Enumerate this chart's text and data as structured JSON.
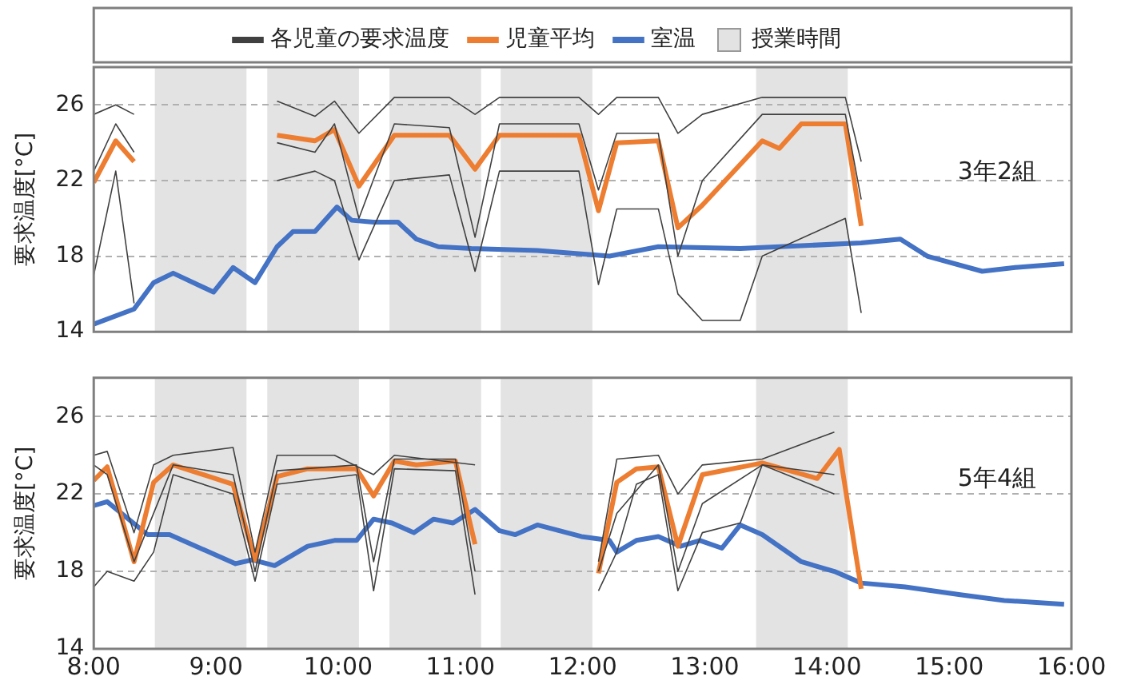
{
  "chart_data": [
    {
      "type": "line",
      "ylabel": "要求温度[°C]",
      "annotations": [
        "3年2組"
      ],
      "legend": "top",
      "tick_labels": "y",
      "grid": "y",
      "xlim": [
        8,
        16
      ],
      "ylim": [
        14,
        28
      ],
      "yticks": [
        14,
        18,
        22,
        26
      ],
      "bands": [
        {
          "axis": "x",
          "from": 8.5,
          "to": 9.25,
          "label": "授業時間",
          "color": "#e3e3e3"
        },
        {
          "axis": "x",
          "from": 9.42,
          "to": 10.17,
          "color": "#e3e3e3"
        },
        {
          "axis": "x",
          "from": 10.42,
          "to": 11.17,
          "color": "#e3e3e3"
        },
        {
          "axis": "x",
          "from": 11.33,
          "to": 12.08,
          "color": "#e3e3e3"
        },
        {
          "axis": "x",
          "from": 13.42,
          "to": 14.17,
          "color": "#e3e3e3"
        }
      ],
      "series": [
        {
          "name": "各児童の要求温度",
          "color": "#404040",
          "x": [
            8.0,
            8.18,
            8.33,
            8.4,
            9.5,
            9.81,
            9.97,
            10.17,
            10.46,
            10.91,
            11.12,
            11.32,
            11.97,
            12.13,
            12.28,
            12.62,
            12.78,
            12.98,
            13.47,
            14.15,
            14.28
          ],
          "values": [
            25.5,
            26.0,
            25.5,
            null,
            26.2,
            25.4,
            26.2,
            24.5,
            26.4,
            26.4,
            25.5,
            26.4,
            26.4,
            25.5,
            26.4,
            26.4,
            24.5,
            25.5,
            26.4,
            26.4,
            23.0
          ]
        },
        {
          "color": "#404040",
          "x": [
            8.0,
            8.18,
            8.33,
            8.4,
            9.5,
            9.81,
            9.97,
            10.17,
            10.46,
            10.91,
            11.12,
            11.32,
            11.97,
            12.13,
            12.28,
            12.62,
            12.78,
            12.98,
            13.29,
            13.47,
            14.15,
            14.28
          ],
          "values": [
            17.0,
            22.5,
            15.5,
            null,
            22.0,
            22.5,
            22.0,
            17.8,
            22.0,
            22.3,
            17.2,
            22.5,
            22.5,
            16.5,
            20.5,
            20.5,
            16.0,
            14.6,
            14.6,
            18.0,
            20.0,
            15.0
          ]
        },
        {
          "color": "#404040",
          "x": [
            8.0,
            8.18,
            8.33,
            8.4,
            9.5,
            9.81,
            9.97,
            10.17,
            10.46,
            10.91,
            11.12,
            11.32,
            11.97,
            12.13,
            12.28,
            12.62,
            12.78,
            12.98,
            13.47,
            14.15,
            14.28
          ],
          "values": [
            22.5,
            25.0,
            23.5,
            null,
            24.0,
            23.5,
            25.0,
            20.0,
            25.0,
            24.8,
            19.0,
            25.0,
            25.0,
            21.5,
            24.5,
            24.5,
            18.0,
            22.0,
            25.5,
            25.5,
            21.0
          ]
        },
        {
          "name": "児童平均",
          "color": "#ed7d31",
          "x": [
            8.0,
            8.18,
            8.33,
            8.4,
            9.5,
            9.81,
            9.97,
            10.17,
            10.46,
            10.91,
            11.12,
            11.32,
            11.97,
            12.13,
            12.28,
            12.62,
            12.78,
            12.98,
            13.47,
            13.61,
            13.79,
            14.15,
            14.28
          ],
          "values": [
            21.9,
            24.1,
            23.0,
            null,
            24.4,
            24.1,
            24.7,
            21.7,
            24.4,
            24.4,
            22.6,
            24.4,
            24.4,
            20.4,
            24.0,
            24.1,
            19.5,
            20.7,
            24.1,
            23.7,
            25.0,
            25.0,
            19.6
          ]
        },
        {
          "name": "室温",
          "color": "#4472c4",
          "x": [
            8.0,
            8.33,
            8.49,
            8.65,
            8.98,
            9.14,
            9.32,
            9.5,
            9.63,
            9.81,
            9.99,
            10.11,
            10.29,
            10.49,
            10.64,
            10.82,
            11.09,
            11.63,
            12.22,
            12.62,
            13.29,
            14.28,
            14.6,
            14.82,
            15.27,
            15.54,
            15.94
          ],
          "values": [
            14.4,
            15.2,
            16.6,
            17.1,
            16.1,
            17.4,
            16.6,
            18.5,
            19.3,
            19.3,
            20.6,
            19.9,
            19.8,
            19.8,
            18.9,
            18.5,
            18.4,
            18.3,
            18.0,
            18.5,
            18.4,
            18.7,
            18.9,
            18.0,
            17.2,
            17.4,
            17.6
          ]
        }
      ]
    },
    {
      "type": "line",
      "ylabel": "要求温度[°C]",
      "annotations": [
        "5年4組"
      ],
      "grid": "y",
      "xlim": [
        8,
        16
      ],
      "xticks": [
        {
          "value": 8,
          "label": "8:00"
        },
        {
          "value": 9,
          "label": "9:00"
        },
        {
          "value": 10,
          "label": "10:00"
        },
        {
          "value": 11,
          "label": "11:00"
        },
        {
          "value": 12,
          "label": "12:00"
        },
        {
          "value": 13,
          "label": "13:00"
        },
        {
          "value": 14,
          "label": "14:00"
        },
        {
          "value": 15,
          "label": "15:00"
        },
        {
          "value": 16,
          "label": "16:00"
        }
      ],
      "ylim": [
        14,
        28
      ],
      "yticks": [
        14,
        18,
        22,
        26
      ],
      "bands": [
        {
          "axis": "x",
          "from": 8.5,
          "to": 9.25,
          "color": "#e3e3e3"
        },
        {
          "axis": "x",
          "from": 9.42,
          "to": 10.17,
          "color": "#e3e3e3"
        },
        {
          "axis": "x",
          "from": 10.42,
          "to": 11.17,
          "color": "#e3e3e3"
        },
        {
          "axis": "x",
          "from": 11.33,
          "to": 12.08,
          "color": "#e3e3e3"
        },
        {
          "axis": "x",
          "from": 13.42,
          "to": 14.17,
          "color": "#e3e3e3"
        }
      ],
      "series": [
        {
          "color": "#404040",
          "x": [
            8.0,
            8.11,
            8.33,
            8.49,
            8.65,
            9.14,
            9.32,
            9.5,
            9.97,
            10.29,
            10.46,
            11.12,
            11.5,
            12.13,
            12.28,
            12.62,
            12.78,
            12.98,
            13.47,
            14.06
          ],
          "values": [
            24.0,
            24.2,
            20.0,
            23.5,
            24.0,
            24.4,
            19.0,
            24.0,
            24.0,
            23.0,
            24.0,
            23.5,
            null,
            18.5,
            23.8,
            24.0,
            22.0,
            23.5,
            23.8,
            25.2
          ]
        },
        {
          "color": "#404040",
          "x": [
            8.0,
            8.11,
            8.33,
            8.49,
            8.65,
            9.14,
            9.32,
            9.5,
            10.15,
            10.29,
            10.46,
            10.96,
            11.12,
            11.5,
            12.13,
            12.28,
            12.44,
            12.62,
            12.78,
            12.98,
            13.29,
            13.47,
            14.06
          ],
          "values": [
            17.2,
            18.0,
            17.5,
            19.0,
            23.0,
            22.0,
            17.5,
            22.5,
            23.0,
            17.0,
            23.3,
            23.2,
            16.8,
            null,
            17.0,
            19.0,
            22.5,
            23.0,
            17.0,
            20.0,
            20.5,
            23.5,
            22.0
          ]
        },
        {
          "color": "#404040",
          "x": [
            8.0,
            8.11,
            8.33,
            8.49,
            8.65,
            9.14,
            9.32,
            9.5,
            10.15,
            10.29,
            10.46,
            10.96,
            11.12,
            11.5,
            12.13,
            12.28,
            12.62,
            12.78,
            12.98,
            13.47,
            14.06
          ],
          "values": [
            23.5,
            23.0,
            18.5,
            21.0,
            23.5,
            23.0,
            18.0,
            23.2,
            23.5,
            18.5,
            23.8,
            23.8,
            18.0,
            null,
            18.0,
            21.0,
            23.5,
            18.0,
            21.5,
            23.5,
            23.0
          ]
        },
        {
          "color": "#ed7d31",
          "x": [
            8.0,
            8.11,
            8.33,
            8.49,
            8.65,
            9.14,
            9.32,
            9.5,
            9.75,
            10.15,
            10.29,
            10.46,
            10.64,
            10.96,
            11.12,
            11.5,
            12.13,
            12.28,
            12.44,
            12.62,
            12.78,
            12.98,
            13.47,
            13.92,
            14.1,
            14.28
          ],
          "values": [
            22.7,
            23.4,
            18.5,
            22.6,
            23.5,
            22.5,
            18.6,
            22.9,
            23.3,
            23.3,
            21.9,
            23.7,
            23.5,
            23.7,
            19.4,
            null,
            17.9,
            22.6,
            23.3,
            23.4,
            19.3,
            23.0,
            23.6,
            22.8,
            24.3,
            17.1
          ]
        },
        {
          "color": "#4472c4",
          "x": [
            8.0,
            8.11,
            8.44,
            8.62,
            9.16,
            9.3,
            9.48,
            9.75,
            9.97,
            10.15,
            10.29,
            10.44,
            10.62,
            10.78,
            10.94,
            11.12,
            11.32,
            11.45,
            11.63,
            11.81,
            11.99,
            12.22,
            12.28,
            12.44,
            12.62,
            12.8,
            12.96,
            13.14,
            13.29,
            13.47,
            13.79,
            14.06,
            14.28,
            14.64,
            15.09,
            15.45,
            15.94
          ],
          "values": [
            21.4,
            21.6,
            19.9,
            19.9,
            18.4,
            18.6,
            18.3,
            19.3,
            19.6,
            19.6,
            20.7,
            20.5,
            20.0,
            20.7,
            20.5,
            21.2,
            20.1,
            19.9,
            20.4,
            20.1,
            19.8,
            19.6,
            19.0,
            19.6,
            19.8,
            19.3,
            19.6,
            19.2,
            20.4,
            19.9,
            18.5,
            18.0,
            17.4,
            17.2,
            16.8,
            16.5,
            16.3
          ]
        }
      ]
    }
  ]
}
